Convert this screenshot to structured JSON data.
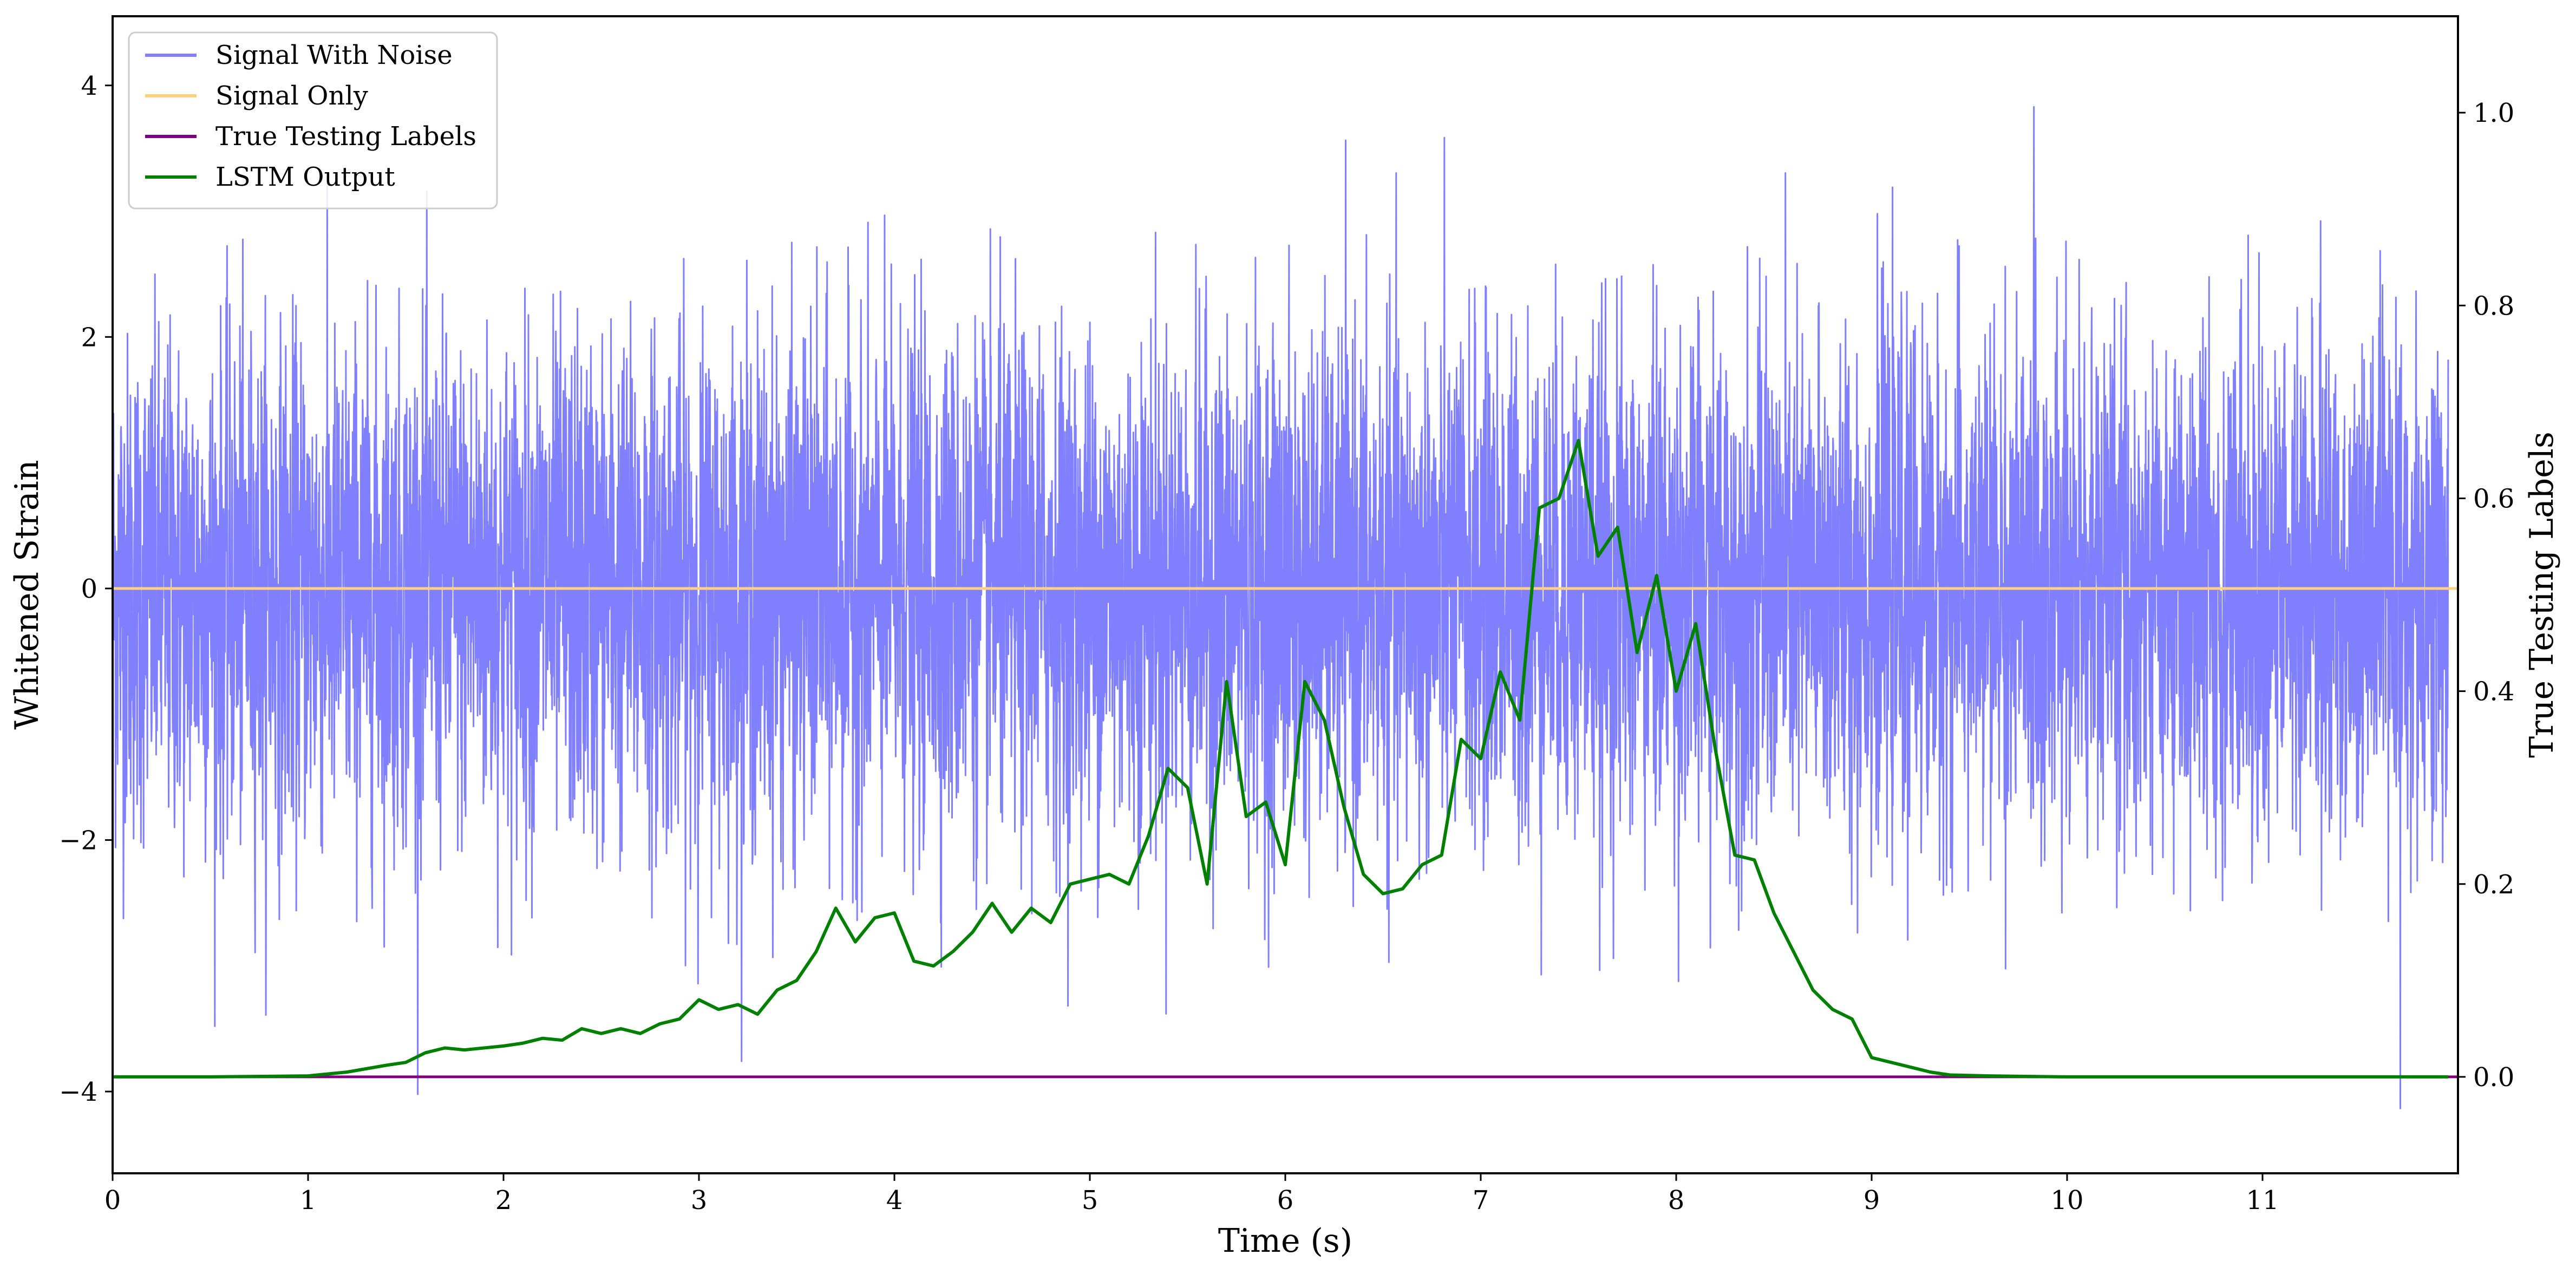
{
  "chart_data": {
    "type": "line",
    "xlabel": "Time (s)",
    "ylabel": "Whitened Strain",
    "y2label": "True Testing Labels",
    "xlim": [
      0,
      12
    ],
    "ylim": [
      -4.65,
      4.55
    ],
    "y2lim": [
      -0.1,
      1.1
    ],
    "grid": false,
    "legend_placement": "top-left",
    "x_ticks": [
      0,
      1,
      2,
      3,
      4,
      5,
      6,
      7,
      8,
      9,
      10,
      11
    ],
    "x_tick_labels": [
      "0",
      "1",
      "2",
      "3",
      "4",
      "5",
      "6",
      "7",
      "8",
      "9",
      "10",
      "11"
    ],
    "y_ticks": [
      4,
      2,
      0,
      -2,
      -4
    ],
    "y_tick_labels": [
      "4",
      "2",
      "0",
      "−2",
      "−4"
    ],
    "y2_ticks": [
      1.0,
      0.8,
      0.6,
      0.4,
      0.2,
      0.0
    ],
    "y2_tick_labels": [
      "1.0",
      "0.8",
      "0.6",
      "0.4",
      "0.2",
      "0.0"
    ],
    "series": [
      {
        "name": "Signal With Noise",
        "color": "#8080ff",
        "axis": "left",
        "description_range": [
          -4.3,
          4.0
        ],
        "noise_std": 1.0
      },
      {
        "name": "Signal Only",
        "color": "#ffd080",
        "axis": "left",
        "x": [
          0,
          12
        ],
        "y": [
          0,
          0
        ]
      },
      {
        "name": "True Testing Labels",
        "color": "#800080",
        "axis": "right",
        "x": [
          0,
          12
        ],
        "y": [
          0,
          0
        ]
      },
      {
        "name": "LSTM Output",
        "color": "#008000",
        "axis": "right",
        "x": [
          0,
          0.5,
          1.0,
          1.2,
          1.4,
          1.5,
          1.6,
          1.7,
          1.8,
          2.0,
          2.1,
          2.2,
          2.3,
          2.4,
          2.5,
          2.6,
          2.7,
          2.8,
          2.9,
          3.0,
          3.1,
          3.2,
          3.3,
          3.4,
          3.5,
          3.6,
          3.7,
          3.8,
          3.9,
          4.0,
          4.1,
          4.2,
          4.3,
          4.4,
          4.5,
          4.6,
          4.7,
          4.8,
          4.9,
          5.0,
          5.1,
          5.2,
          5.3,
          5.4,
          5.5,
          5.6,
          5.7,
          5.8,
          5.9,
          6.0,
          6.1,
          6.2,
          6.3,
          6.4,
          6.5,
          6.6,
          6.7,
          6.8,
          6.9,
          7.0,
          7.1,
          7.2,
          7.3,
          7.4,
          7.5,
          7.6,
          7.7,
          7.8,
          7.9,
          8.0,
          8.1,
          8.2,
          8.3,
          8.4,
          8.5,
          8.6,
          8.7,
          8.8,
          8.9,
          9.0,
          9.1,
          9.2,
          9.3,
          9.4,
          9.6,
          10.0,
          10.5,
          11.0,
          11.5,
          11.95
        ],
        "y": [
          0,
          0,
          0.001,
          0.005,
          0.012,
          0.015,
          0.025,
          0.03,
          0.028,
          0.032,
          0.035,
          0.04,
          0.038,
          0.05,
          0.045,
          0.05,
          0.045,
          0.055,
          0.06,
          0.08,
          0.07,
          0.075,
          0.065,
          0.09,
          0.1,
          0.13,
          0.175,
          0.14,
          0.165,
          0.17,
          0.12,
          0.115,
          0.13,
          0.15,
          0.18,
          0.15,
          0.175,
          0.16,
          0.2,
          0.205,
          0.21,
          0.2,
          0.25,
          0.32,
          0.3,
          0.2,
          0.41,
          0.27,
          0.285,
          0.22,
          0.41,
          0.37,
          0.28,
          0.21,
          0.19,
          0.195,
          0.22,
          0.23,
          0.35,
          0.33,
          0.42,
          0.37,
          0.59,
          0.6,
          0.66,
          0.54,
          0.57,
          0.44,
          0.52,
          0.4,
          0.47,
          0.34,
          0.23,
          0.225,
          0.17,
          0.13,
          0.09,
          0.07,
          0.06,
          0.02,
          0.015,
          0.01,
          0.005,
          0.002,
          0.001,
          0,
          0,
          0,
          0,
          0
        ]
      }
    ]
  }
}
